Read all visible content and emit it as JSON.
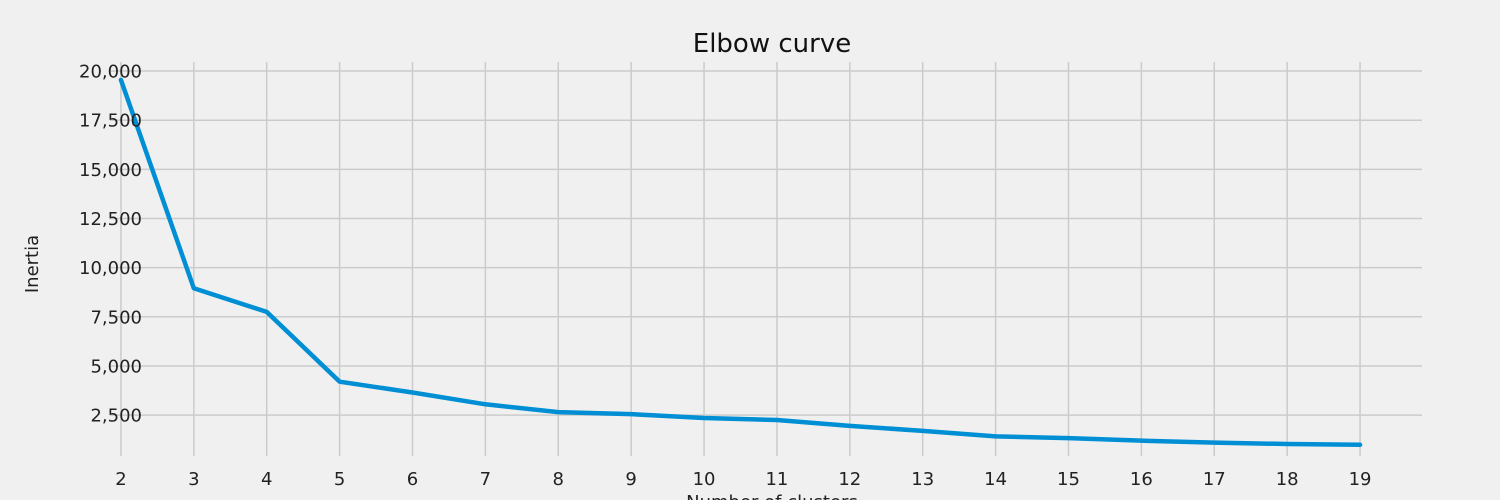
{
  "chart_data": {
    "type": "line",
    "title": "Elbow curve",
    "xlabel": "Number of clusters",
    "ylabel": "Inertia",
    "x": [
      2,
      3,
      4,
      5,
      6,
      7,
      8,
      9,
      10,
      11,
      12,
      13,
      14,
      15,
      16,
      17,
      18,
      19
    ],
    "series": [
      {
        "values": [
          19550,
          8950,
          7750,
          4200,
          3650,
          3050,
          2650,
          2550,
          2350,
          2250,
          1950,
          1700,
          1420,
          1330,
          1200,
          1100,
          1030,
          990
        ],
        "color": "#008fd5"
      }
    ],
    "x_ticks": [
      "2",
      "3",
      "4",
      "5",
      "6",
      "7",
      "8",
      "9",
      "10",
      "11",
      "12",
      "13",
      "14",
      "15",
      "16",
      "17",
      "18",
      "19"
    ],
    "y_ticks": [
      {
        "value": 2500,
        "label": "2,500"
      },
      {
        "value": 5000,
        "label": "5,000"
      },
      {
        "value": 7500,
        "label": "7,500"
      },
      {
        "value": 10000,
        "label": "10,000"
      },
      {
        "value": 12500,
        "label": "12,500"
      },
      {
        "value": 15000,
        "label": "15,000"
      },
      {
        "value": 17500,
        "label": "17,500"
      },
      {
        "value": 20000,
        "label": "20,000"
      }
    ],
    "xlim": [
      1.85,
      19.85
    ],
    "ylim": [
      420,
      20460
    ],
    "grid": true,
    "background": "#f0f0f0",
    "grid_color": "#cbcbcb"
  }
}
